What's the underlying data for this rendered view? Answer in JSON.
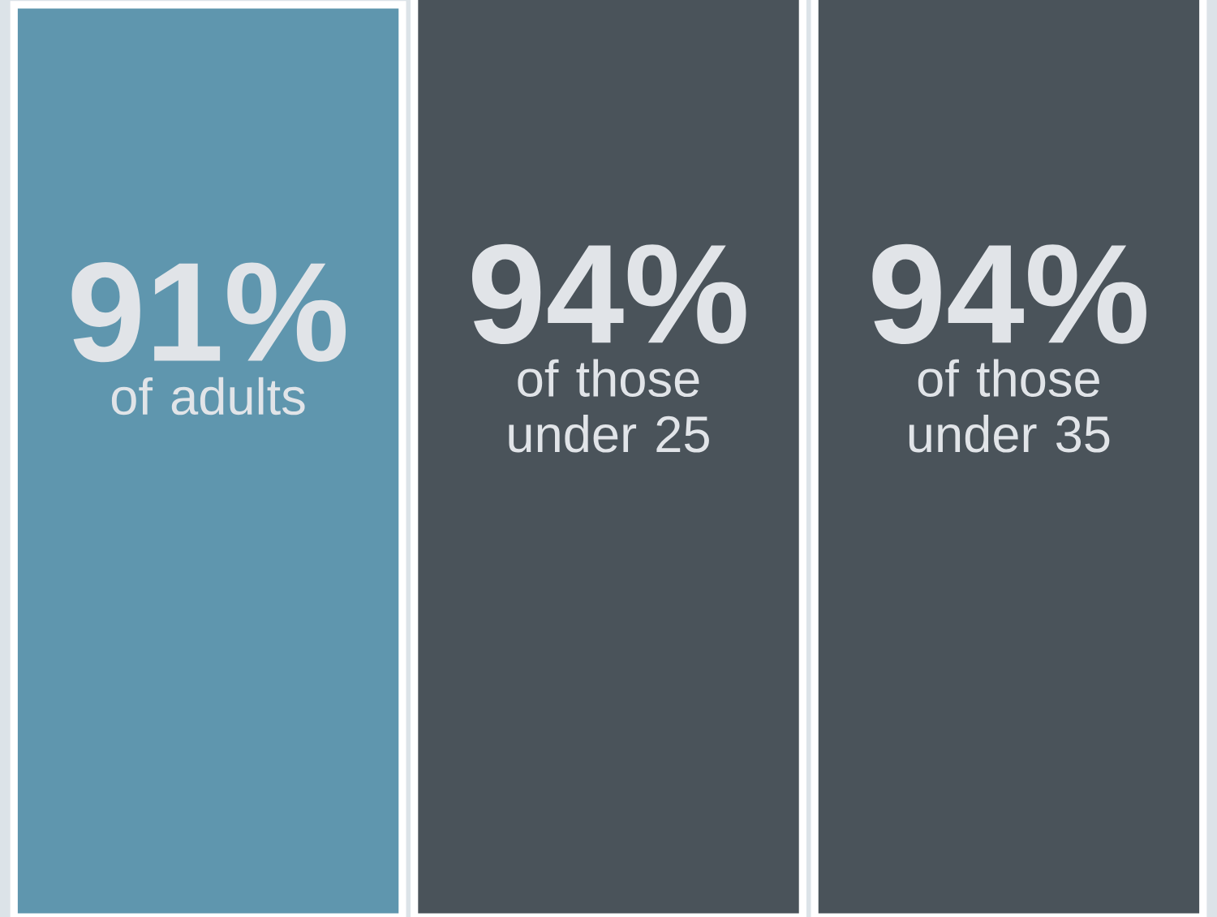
{
  "chart_data": {
    "type": "bar",
    "categories": [
      "of adults",
      "of those under 25",
      "of those under 35"
    ],
    "values": [
      91,
      94,
      94
    ],
    "value_labels": [
      "91%",
      "94%",
      "94%"
    ],
    "colors": [
      "#5f96ae",
      "#4a535a",
      "#4a535a"
    ]
  }
}
